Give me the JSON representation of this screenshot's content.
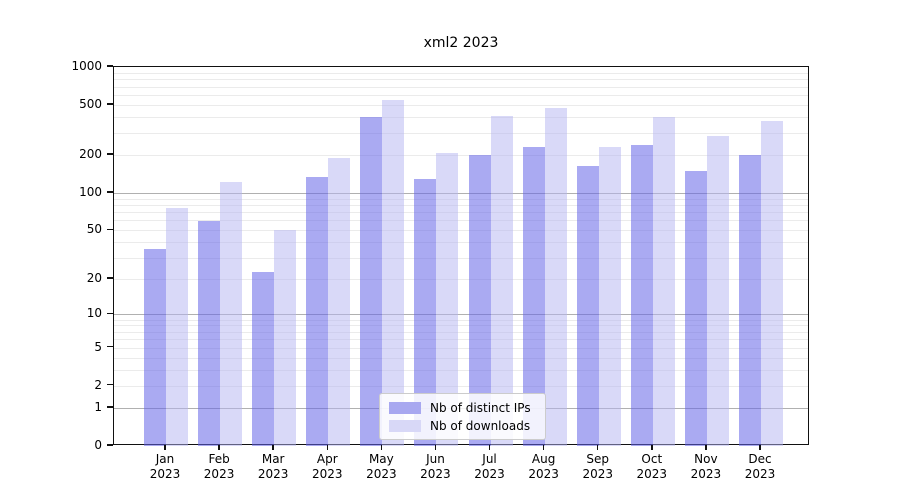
{
  "chart_data": {
    "type": "bar",
    "title": "xml2 2023",
    "categories": [
      "Jan",
      "Feb",
      "Mar",
      "Apr",
      "May",
      "Jun",
      "Jul",
      "Aug",
      "Sep",
      "Oct",
      "Nov",
      "Dec"
    ],
    "year_label": "2023",
    "series": [
      {
        "id": "distinct-ips",
        "name": "Nb of distinct IPs",
        "values": [
          35,
          59,
          23,
          134,
          402,
          130,
          202,
          230,
          164,
          240,
          149,
          202
        ],
        "bar_color": "rgba(100,100,232,0.55)",
        "legend_color": "#a8a8f0"
      },
      {
        "id": "downloads",
        "name": "Nb of downloads",
        "values": [
          75,
          121,
          50,
          189,
          545,
          209,
          410,
          473,
          233,
          404,
          284,
          375
        ],
        "bar_color": "rgba(180,180,242,0.5)",
        "legend_color": "#d8d8f7"
      }
    ],
    "yscale": "log10(value+1)",
    "ylim": [
      0,
      1000
    ],
    "yticks": [
      0,
      1,
      2,
      5,
      10,
      20,
      50,
      100,
      200,
      500,
      1000
    ],
    "major_gridlines": [
      1,
      10,
      100,
      1000
    ],
    "minor_gridlines": [
      2,
      3,
      4,
      5,
      6,
      7,
      8,
      9,
      20,
      30,
      40,
      50,
      60,
      70,
      80,
      90,
      200,
      300,
      400,
      500,
      600,
      700,
      800,
      900
    ],
    "grid": true,
    "legend_position": "bottom-center",
    "colors": {
      "major_grid": "#b0b0b0",
      "minor_grid": "#ebebeb",
      "axis": "#111111"
    }
  }
}
